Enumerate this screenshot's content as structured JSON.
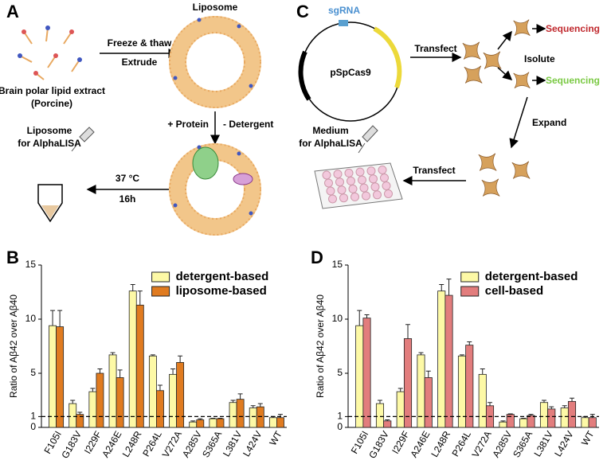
{
  "panels": {
    "a": {
      "label": "A",
      "lipid": "Brain polar lipid extract",
      "source": "(Porcine)",
      "step1_top": "Freeze & thaw",
      "step1_bottom": "Extrude",
      "liposome": "Liposome",
      "step2_left": "+ Protein",
      "step2_right": "- Detergent",
      "temp": "37 °C",
      "time": "16h",
      "out_line1": "Liposome",
      "out_line2": "for AlphaLISA"
    },
    "c": {
      "label": "C",
      "sgrna": "sgRNA",
      "plasmid": "pSpCas9",
      "transfect1": "Transfect",
      "isolate": "Isolute",
      "seq_fail": "Sequencing",
      "seq_ok": "Sequencing",
      "expand": "Expand",
      "transfect2": "Transfect",
      "out_line1": "Medium",
      "out_line2": "for AlphaLISA"
    }
  },
  "chart_data": [
    {
      "type": "bar",
      "panel_label": "B",
      "y_label": "Ratio of Aβ42 over Aβ40",
      "categories": [
        "F105I",
        "G183V",
        "I229F",
        "A246E",
        "L248R",
        "P264L",
        "V272A",
        "A285V",
        "S365A",
        "L381V",
        "L424V",
        "WT"
      ],
      "series": [
        {
          "name": "detergent-based",
          "color": "#fdf9a6",
          "values": [
            9.4,
            2.2,
            3.3,
            6.7,
            12.6,
            6.6,
            4.9,
            0.5,
            0.8,
            2.3,
            1.8,
            0.9
          ],
          "errors": [
            1.4,
            0.3,
            0.3,
            0.2,
            0.6,
            0.1,
            0.5,
            0.1,
            0.05,
            0.2,
            0.2,
            0.1
          ]
        },
        {
          "name": "liposome-based",
          "color": "#e07b20",
          "values": [
            9.3,
            1.2,
            5.0,
            4.6,
            11.3,
            3.4,
            6.0,
            0.7,
            0.8,
            2.6,
            1.9,
            0.9
          ],
          "errors": [
            1.5,
            0.2,
            0.4,
            0.7,
            1.3,
            0.5,
            0.6,
            0.1,
            0.05,
            0.5,
            0.3,
            0.3
          ]
        }
      ],
      "ylim": [
        0,
        15
      ],
      "yticks": [
        0,
        1,
        5,
        10,
        15
      ],
      "reference_line": 1,
      "legend": "upper right"
    },
    {
      "type": "bar",
      "panel_label": "D",
      "y_label": "Ratio of Aβ42 over Aβ40",
      "categories": [
        "F105I",
        "G183V",
        "I229F",
        "A246E",
        "L248R",
        "P264L",
        "V272A",
        "A285V",
        "S365A",
        "L381V",
        "L424V",
        "WT"
      ],
      "series": [
        {
          "name": "detergent-based",
          "color": "#fdf9a6",
          "values": [
            9.4,
            2.2,
            3.3,
            6.7,
            12.6,
            6.6,
            4.9,
            0.5,
            0.8,
            2.3,
            1.8,
            0.9
          ],
          "errors": [
            1.4,
            0.3,
            0.3,
            0.2,
            0.6,
            0.1,
            0.5,
            0.1,
            0.05,
            0.2,
            0.2,
            0.1
          ]
        },
        {
          "name": "cell-based",
          "color": "#e27d7d",
          "values": [
            10.1,
            0.6,
            8.2,
            4.6,
            12.2,
            7.6,
            2.0,
            1.2,
            1.1,
            1.7,
            2.4,
            0.9
          ],
          "errors": [
            0.3,
            0.1,
            1.3,
            0.6,
            1.5,
            0.3,
            0.3,
            0.05,
            0.1,
            0.2,
            0.3,
            0.3
          ]
        }
      ],
      "ylim": [
        0,
        15
      ],
      "yticks": [
        0,
        1,
        5,
        10,
        15
      ],
      "reference_line": 1,
      "legend": "upper right"
    }
  ]
}
